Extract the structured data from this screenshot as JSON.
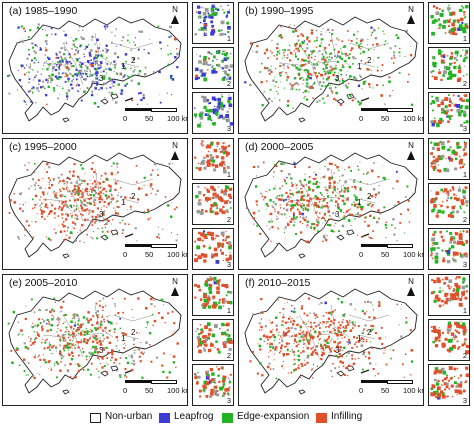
{
  "panels": [
    {
      "title": "(a) 1985–1990",
      "scale": {
        "zero": "0",
        "mid": "50",
        "end": "100 km"
      },
      "north": "N",
      "insets": [
        "1",
        "2",
        "3"
      ],
      "mix": {
        "leapfrog": 0.35,
        "edge": 0.25,
        "infill": 0.05,
        "gray": 0.35
      }
    },
    {
      "title": "(b) 1990–1995",
      "scale": {
        "zero": "0",
        "mid": "50",
        "end": "100 km"
      },
      "north": "N",
      "insets": [
        "1",
        "2",
        "3"
      ],
      "mix": {
        "leapfrog": 0.03,
        "edge": 0.45,
        "infill": 0.32,
        "gray": 0.2
      }
    },
    {
      "title": "(c) 1995–2000",
      "scale": {
        "zero": "0",
        "mid": "50",
        "end": "100 km"
      },
      "north": "N",
      "insets": [
        "1",
        "2",
        "3"
      ],
      "mix": {
        "leapfrog": 0.02,
        "edge": 0.08,
        "infill": 0.7,
        "gray": 0.2
      }
    },
    {
      "title": "(d) 2000–2005",
      "scale": {
        "zero": "0",
        "mid": "50",
        "end": "100 km"
      },
      "north": "N",
      "insets": [
        "1",
        "2",
        "3"
      ],
      "mix": {
        "leapfrog": 0.02,
        "edge": 0.28,
        "infill": 0.5,
        "gray": 0.2
      }
    },
    {
      "title": "(e) 2005–2010",
      "scale": {
        "zero": "0",
        "mid": "50",
        "end": "100 km"
      },
      "north": "N",
      "insets": [
        "1",
        "2",
        "3"
      ],
      "mix": {
        "leapfrog": 0.02,
        "edge": 0.25,
        "infill": 0.55,
        "gray": 0.18
      }
    },
    {
      "title": "(f) 2010–2015",
      "scale": {
        "zero": "0",
        "mid": "50",
        "end": "100 km"
      },
      "north": "N",
      "insets": [
        "1",
        "2",
        "3"
      ],
      "mix": {
        "leapfrog": 0.01,
        "edge": 0.14,
        "infill": 0.75,
        "gray": 0.1
      }
    }
  ],
  "legend": [
    {
      "label": "Non-urban",
      "color": "#ffffff"
    },
    {
      "label": "Leapfrog",
      "color": "#3b3bd6"
    },
    {
      "label": "Edge-expansion",
      "color": "#22b422"
    },
    {
      "label": "Infilling",
      "color": "#e0502a"
    }
  ],
  "colors": {
    "leapfrog": "#3b3bd6",
    "edge": "#22b422",
    "infill": "#e0502a",
    "gray": "#9a9a9a",
    "outline": "#222222"
  }
}
